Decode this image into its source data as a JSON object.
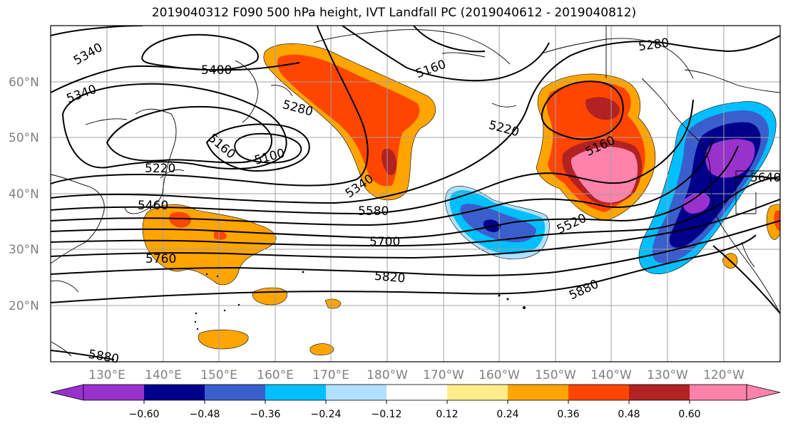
{
  "title": "2019040312 F090 500 hPa height, IVT Landfall PC (2019040612 - 2019040812)",
  "lat_ticks": [
    "60°N",
    "50°N",
    "40°N",
    "30°N",
    "20°N"
  ],
  "lon_ticks": [
    "130°E",
    "140°E",
    "150°E",
    "160°E",
    "170°E",
    "180°W",
    "170°W",
    "160°W",
    "150°W",
    "140°W",
    "130°W",
    "120°W"
  ],
  "contour_labels": [
    "5340",
    "5400",
    "5340",
    "5280",
    "5160",
    "5100",
    "5220",
    "5460",
    "5340",
    "5160",
    "5220",
    "5280",
    "5160",
    "5580",
    "5520",
    "5700",
    "5760",
    "5820",
    "5880",
    "5880",
    "5640"
  ],
  "colorbar": {
    "ticks": [
      "−0.60",
      "−0.48",
      "−0.36",
      "−0.24",
      "−0.12",
      "0.12",
      "0.24",
      "0.36",
      "0.48",
      "0.60"
    ],
    "colors": [
      "#9932cc",
      "#00008b",
      "#3a5fcd",
      "#00bfff",
      "#b0e2ff",
      "#ffffff",
      "#ffec8b",
      "#ffa500",
      "#ff4500",
      "#b22222",
      "#ff82ab"
    ]
  }
}
